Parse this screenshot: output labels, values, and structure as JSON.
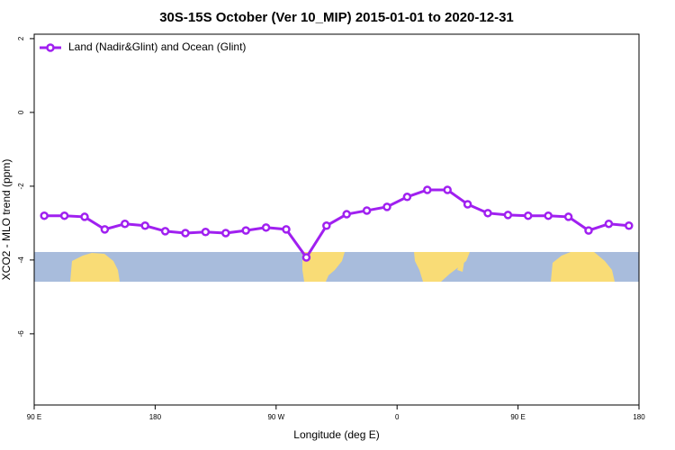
{
  "chart_data": {
    "type": "line",
    "title": "30S-15S October (Ver 10_MIP)   2015-01-01 to 2020-12-31",
    "x_label": "Longitude (deg E)",
    "y_label": "XCO2 - MLO trend (ppm)",
    "x": [
      97.5,
      112.5,
      127.5,
      142.5,
      157.5,
      172.5,
      187.5,
      202.5,
      217.5,
      232.5,
      247.5,
      262.5,
      277.5,
      292.5,
      307.5,
      322.5,
      337.5,
      352.5,
      367.5,
      382.5,
      397.5,
      412.5,
      427.5,
      442.5,
      457.5,
      472.5,
      487.5,
      502.5,
      517.5,
      532.5
    ],
    "series": [
      {
        "name": "Land (Nadir&Glint) and Ocean (Glint)",
        "color": "#a020f0",
        "values": [
          -2.8,
          -2.8,
          -2.83,
          -3.17,
          -3.02,
          -3.07,
          -3.22,
          -3.27,
          -3.24,
          -3.27,
          -3.2,
          -3.12,
          -3.17,
          -3.93,
          -3.07,
          -2.76,
          -2.66,
          -2.56,
          -2.29,
          -2.1,
          -2.1,
          -2.49,
          -2.73,
          -2.78,
          -2.8,
          -2.8,
          -2.83,
          -3.2,
          -3.02,
          -3.07
        ]
      }
    ],
    "xlim": [
      90,
      540
    ],
    "xticks": [
      {
        "value": 90,
        "label": "90 E"
      },
      {
        "value": 180,
        "label": "180"
      },
      {
        "value": 270,
        "label": "90 W"
      },
      {
        "value": 360,
        "label": "0"
      },
      {
        "value": 450,
        "label": "90 E"
      },
      {
        "value": 540,
        "label": "180"
      }
    ],
    "ylim": [
      -7.93,
      2.12
    ],
    "yticks": [
      2,
      0,
      -2,
      -4,
      -6
    ],
    "legend": "top-left"
  }
}
